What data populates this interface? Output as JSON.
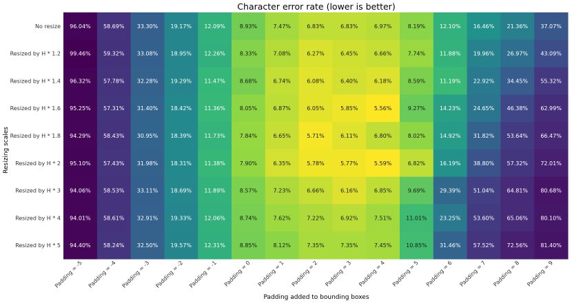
{
  "chart_data": {
    "type": "heatmap",
    "title": "Character error rate (lower is better)",
    "xlabel": "Padding added to bounding boxes",
    "ylabel": "Resizing scales",
    "x_categories": [
      "Padding = -5",
      "Padding = -4",
      "Padding = -3",
      "Padding = -2",
      "Padding = -1",
      "Padding = 0",
      "Padding = 1",
      "Padding = 2",
      "Padding = 3",
      "Padding = 4",
      "Padding = 5",
      "Padding = 6",
      "Padding = 7",
      "Padding = 8",
      "Padding = 9"
    ],
    "y_categories": [
      "No resize",
      "Resized by H * 1.2",
      "Resized by H * 1.4",
      "Resized by H * 1.6",
      "Resized by H * 1.8",
      "Resized by H * 2",
      "Resized by H * 3",
      "Resized by H * 4",
      "Resized by H * 5"
    ],
    "values": [
      [
        96.04,
        58.69,
        33.3,
        19.17,
        12.09,
        8.93,
        7.47,
        6.83,
        6.83,
        6.97,
        8.19,
        12.1,
        16.46,
        21.36,
        37.07
      ],
      [
        99.46,
        59.32,
        33.08,
        18.95,
        12.26,
        8.33,
        7.08,
        6.27,
        6.45,
        6.66,
        7.74,
        11.88,
        19.96,
        26.97,
        43.09
      ],
      [
        96.32,
        57.78,
        32.28,
        19.29,
        11.47,
        8.68,
        6.74,
        6.08,
        6.4,
        6.18,
        8.59,
        11.19,
        22.92,
        34.45,
        55.32
      ],
      [
        95.25,
        57.31,
        31.4,
        18.42,
        11.36,
        8.05,
        6.87,
        6.05,
        5.85,
        5.56,
        9.27,
        14.23,
        24.65,
        46.38,
        62.99
      ],
      [
        94.29,
        58.43,
        30.95,
        18.39,
        11.73,
        7.84,
        6.65,
        5.71,
        6.11,
        6.8,
        8.02,
        14.92,
        31.82,
        53.64,
        66.47
      ],
      [
        95.1,
        57.43,
        31.98,
        18.31,
        11.38,
        7.9,
        6.35,
        5.78,
        5.77,
        5.59,
        6.82,
        16.19,
        38.8,
        57.32,
        72.01
      ],
      [
        94.06,
        58.53,
        33.11,
        18.69,
        11.89,
        8.57,
        7.23,
        6.66,
        6.16,
        6.85,
        9.69,
        29.39,
        51.04,
        64.81,
        80.68
      ],
      [
        94.01,
        58.61,
        32.91,
        19.33,
        12.06,
        8.74,
        7.62,
        7.22,
        6.92,
        7.51,
        11.01,
        23.25,
        53.6,
        65.06,
        80.1
      ],
      [
        94.4,
        58.24,
        32.5,
        19.57,
        12.31,
        8.85,
        8.12,
        7.35,
        7.35,
        7.45,
        10.85,
        31.46,
        57.52,
        72.56,
        81.4
      ]
    ],
    "value_suffix": "%",
    "colormap": "viridis_r",
    "legend": "none"
  }
}
